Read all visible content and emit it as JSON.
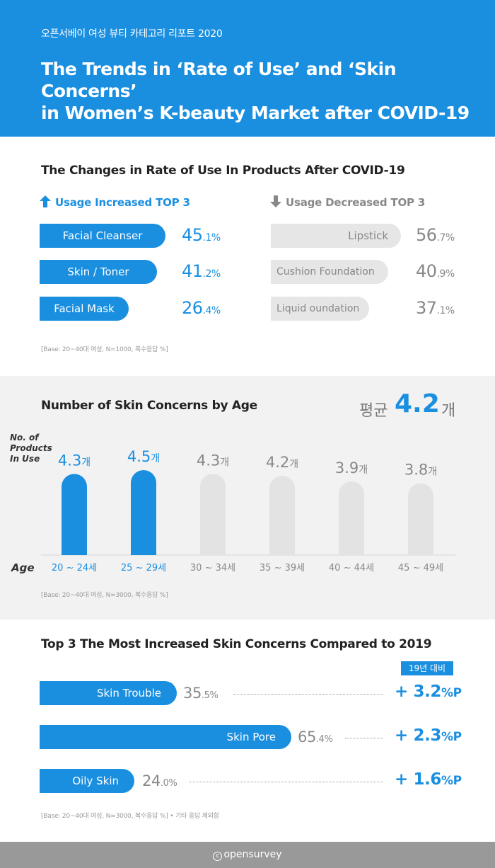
{
  "header": {
    "kicker": "오픈서베이 여성 뷰티 카테고리 리포트 2020",
    "title_line1": "The Trends in ‘Rate of Use’ and ‘Skin Concerns’",
    "title_line2": "in Women’s K-beauty Market after COVID-19"
  },
  "section1": {
    "title": "The Changes in Rate of Use In Products After COVID-19",
    "increased_label": "Usage Increased TOP 3",
    "decreased_label": "Usage Decreased TOP 3",
    "increased": [
      {
        "name": "Facial Cleanser",
        "value_int": "45",
        "value_dec": ".1%"
      },
      {
        "name": "Skin / Toner",
        "value_int": "41",
        "value_dec": ".2%"
      },
      {
        "name": "Facial Mask",
        "value_int": "26",
        "value_dec": ".4%"
      }
    ],
    "decreased": [
      {
        "name": "Lipstick",
        "value_int": "56",
        "value_dec": ".7%"
      },
      {
        "name": "Cushion Foundation",
        "value_int": "40",
        "value_dec": ".9%"
      },
      {
        "name": "Liquid oundation",
        "value_int": "37",
        "value_dec": ".1%"
      }
    ],
    "base": "[Base: 20~40대 여성, N=1000, 복수응답 %]",
    "colors": {
      "accent": "#1a8fe0",
      "muted": "#888888",
      "pill_grey": "#e6e6e6"
    }
  },
  "section2": {
    "title": "Number of Skin Concerns by Age",
    "avg_label": "평균",
    "avg_value": "4.2",
    "avg_unit": "개",
    "y_label_1": "No. of",
    "y_label_2": "Products",
    "y_label_3": "In Use",
    "x_label": "Age",
    "base": "[Base: 20~40대 여성, N=3000, 복수응답 %]"
  },
  "section3": {
    "title": "Top 3 The Most Increased Skin Concerns Compared to 2019",
    "badge": "19년 대비",
    "items": [
      {
        "name": "Skin Trouble",
        "value_int": "35",
        "value_dec": ".5%",
        "delta_int": "+ 3.2",
        "delta_unit": "%P"
      },
      {
        "name": "Skin Pore",
        "value_int": "65",
        "value_dec": ".4%",
        "delta_int": "+ 2.3",
        "delta_unit": "%P"
      },
      {
        "name": "Oily Skin",
        "value_int": "24",
        "value_dec": ".0%",
        "delta_int": "+ 1.6",
        "delta_unit": "%P"
      }
    ],
    "base": "[Base: 20~40대 여성, N=3000, 복수응답 %] • 기타 응답 제외함"
  },
  "footer": {
    "brand": "opensurvey",
    "c_mark": "c"
  },
  "chart_data": [
    {
      "type": "bar",
      "title": "The Changes in Rate of Use In Products After COVID-19 — Usage Increased TOP 3",
      "categories": [
        "Facial Cleanser",
        "Skin / Toner",
        "Facial Mask"
      ],
      "values": [
        45.1,
        41.2,
        26.4
      ]
    },
    {
      "type": "bar",
      "title": "The Changes in Rate of Use In Products After COVID-19 — Usage Decreased TOP 3",
      "categories": [
        "Lipstick",
        "Cushion Foundation",
        "Liquid oundation"
      ],
      "values": [
        56.7,
        40.9,
        37.1
      ]
    },
    {
      "type": "bar",
      "title": "Number of Skin Concerns by Age",
      "xlabel": "Age",
      "ylabel": "No. of Products In Use",
      "categories": [
        "20 ~ 24세",
        "25 ~ 29세",
        "30 ~ 34세",
        "35 ~ 39세",
        "40 ~ 44세",
        "45 ~ 49세"
      ],
      "values": [
        4.3,
        4.5,
        4.3,
        4.2,
        3.9,
        3.8
      ],
      "value_labels": [
        {
          "num": "4.3",
          "unit": "개"
        },
        {
          "num": "4.5",
          "unit": "개"
        },
        {
          "num": "4.3",
          "unit": "개"
        },
        {
          "num": "4.2",
          "unit": "개"
        },
        {
          "num": "3.9",
          "unit": "개"
        },
        {
          "num": "3.8",
          "unit": "개"
        }
      ],
      "highlighted": [
        true,
        true,
        false,
        false,
        false,
        false
      ],
      "colors": {
        "highlight": "#1a8fe0",
        "normal": "#e3e3e3",
        "label_highlight": "#1a8fe0",
        "label_normal": "#888888"
      }
    },
    {
      "type": "bar",
      "title": "Top 3 The Most Increased Skin Concerns Compared to 2019",
      "categories": [
        "Skin Trouble",
        "Skin Pore",
        "Oily Skin"
      ],
      "values": [
        35.5,
        65.4,
        24.0
      ],
      "delta_vs_2019": [
        3.2,
        2.3,
        1.6
      ]
    }
  ]
}
